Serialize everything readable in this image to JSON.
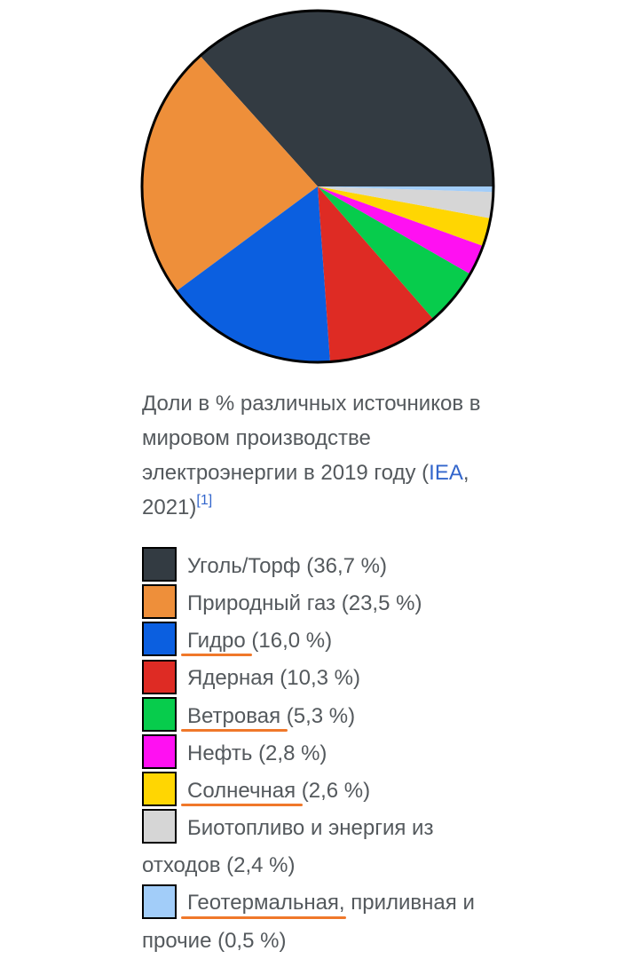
{
  "colors": {
    "text": "#54595d",
    "link": "#3366cc",
    "underline": "#f0782a",
    "pie_outline": "#000000"
  },
  "caption": {
    "text_before": "Доли в % различных источников в мировом производстве электроэнергии в 2019 году (",
    "link": "IEA",
    "text_after": ", 2021)",
    "ref": "[1]"
  },
  "chart_data": {
    "type": "pie",
    "start": "right",
    "direction": "counterclockwise",
    "series": [
      {
        "name": "Уголь/Торф",
        "value": 36.7,
        "color": "#333b42"
      },
      {
        "name": "Природный газ",
        "value": 23.5,
        "color": "#ee8f3a"
      },
      {
        "name": "Гидро",
        "value": 16.0,
        "color": "#0b5fe0"
      },
      {
        "name": "Ядерная",
        "value": 10.3,
        "color": "#de2b24"
      },
      {
        "name": "Ветровая",
        "value": 5.3,
        "color": "#07cc4c"
      },
      {
        "name": "Нефть",
        "value": 2.8,
        "color": "#ff10f2"
      },
      {
        "name": "Солнечная",
        "value": 2.6,
        "color": "#ffd602"
      },
      {
        "name": "Биотопливо и энергия из отходов",
        "value": 2.4,
        "color": "#d6d6d6"
      },
      {
        "name": "Геотермальная, приливная и прочие",
        "value": 0.5,
        "color": "#a2cdf9"
      }
    ]
  },
  "legend": [
    {
      "label": "Уголь/Торф (36,7 %)",
      "color": "#333b42",
      "underline": ""
    },
    {
      "label": "Природный газ (23,5 %)",
      "color": "#ee8f3a",
      "underline": ""
    },
    {
      "label": "Гидро (16,0 %)",
      "color": "#0b5fe0",
      "underline": "Гидро"
    },
    {
      "label": "Ядерная (10,3 %)",
      "color": "#de2b24",
      "underline": ""
    },
    {
      "label": "Ветровая (5,3 %)",
      "color": "#07cc4c",
      "underline": "Ветровая"
    },
    {
      "label": "Нефть (2,8 %)",
      "color": "#ff10f2",
      "underline": ""
    },
    {
      "label": "Солнечная (2,6 %)",
      "color": "#ffd602",
      "underline": "Солнечная"
    },
    {
      "label": "Биотопливо и энергия из отходов (2,4 %)",
      "color": "#d6d6d6",
      "underline": ""
    },
    {
      "label": "Геотермальная, приливная и прочие (0,5 %)",
      "color": "#a2cdf9",
      "underline": "Геотермальная"
    }
  ]
}
